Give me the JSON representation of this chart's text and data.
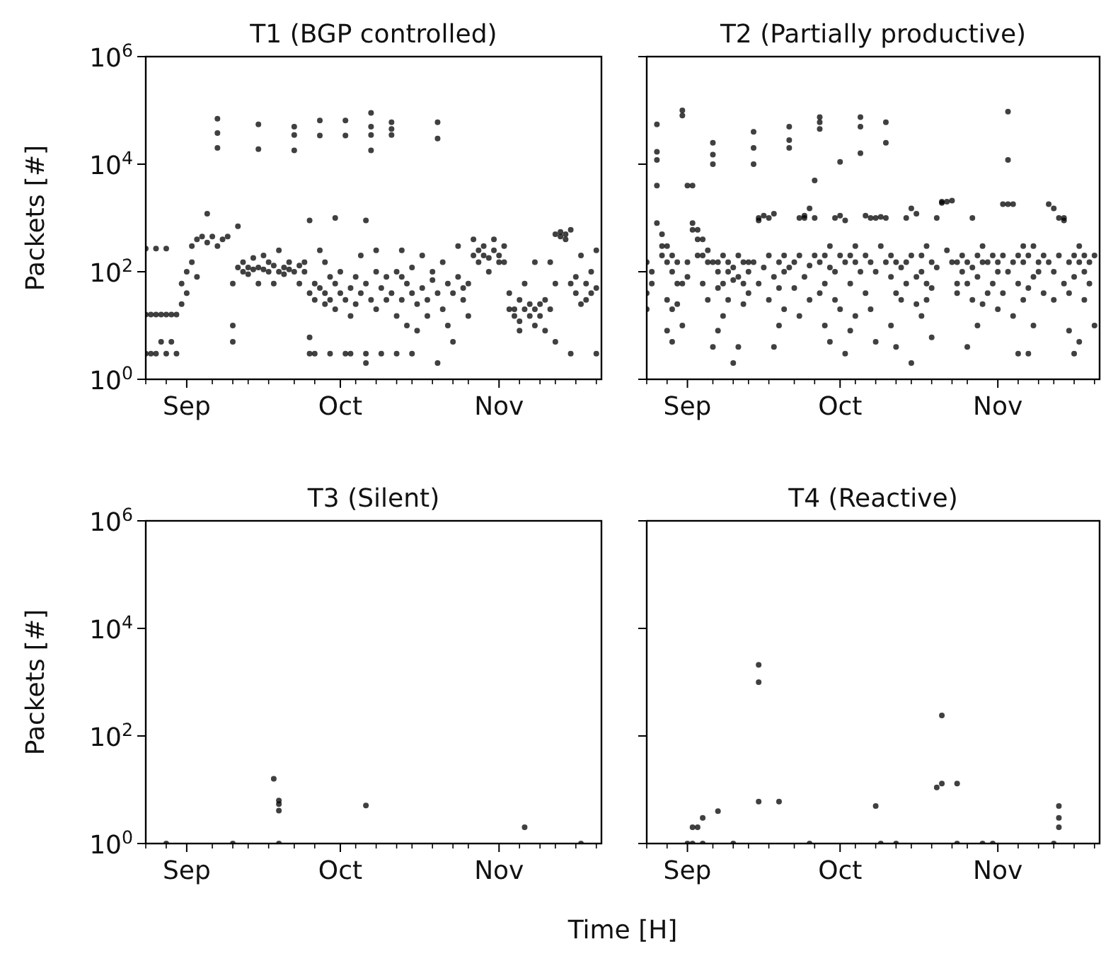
{
  "chart_data": [
    {
      "type": "scatter",
      "title": "T1 (BGP controlled)",
      "ylabel": "Packets [#]",
      "color": "#000000",
      "marker": "circle",
      "log": "y",
      "xlim": [
        "--08-24",
        "--11-21"
      ],
      "ylim": [
        1,
        1000000
      ],
      "xticks": [
        {
          "value": "--09-01",
          "label": "Sep"
        },
        {
          "value": "--10-01",
          "label": "Oct"
        },
        {
          "value": "--11-01",
          "label": "Nov"
        },
        {
          "value": "--08-24",
          "label": null
        },
        {
          "value": "--08-28",
          "label": null
        },
        {
          "value": "--09-06",
          "label": null
        },
        {
          "value": "--09-10",
          "label": null
        },
        {
          "value": "--09-13",
          "label": null
        },
        {
          "value": "--09-17",
          "label": null
        },
        {
          "value": "--09-22",
          "label": null
        },
        {
          "value": "--09-26",
          "label": null
        },
        {
          "value": "--10-04",
          "label": null
        },
        {
          "value": "--10-08",
          "label": null
        },
        {
          "value": "--10-12",
          "label": null
        },
        {
          "value": "--10-15",
          "label": null
        },
        {
          "value": "--10-19",
          "label": null
        },
        {
          "value": "--10-23",
          "label": null
        },
        {
          "value": "--10-26",
          "label": null
        },
        {
          "value": "--11-05",
          "label": null
        },
        {
          "value": "--11-09",
          "label": null
        },
        {
          "value": "--11-12",
          "label": null
        },
        {
          "value": "--11-16",
          "label": null
        },
        {
          "value": "--11-20",
          "label": null
        }
      ],
      "yticks": [
        {
          "value": 1,
          "label": "10$^{0}$"
        },
        {
          "value": 100,
          "label": "10$^{2}$"
        },
        {
          "value": 10000,
          "label": "10$^{4}$"
        },
        {
          "value": 1000000,
          "label": "10$^{6}$"
        }
      ],
      "x": [
        "--08-24",
        "--08-24",
        "--08-24",
        "--08-25",
        "--08-25",
        "--08-26",
        "--08-26",
        "--08-26",
        "--08-27",
        "--08-27",
        "--08-28",
        "--08-28",
        "--08-28",
        "--08-29",
        "--08-29",
        "--08-30",
        "--08-30",
        "--08-31",
        "--08-31",
        "--09-01",
        "--09-01",
        "--09-02",
        "--09-02",
        "--09-03",
        "--09-03",
        "--09-04",
        "--09-05",
        "--09-05",
        "--09-06",
        "--09-07",
        "--09-07",
        "--09-07",
        "--09-07",
        "--09-08",
        "--09-09",
        "--09-10",
        "--09-10",
        "--09-10",
        "--09-11",
        "--09-11",
        "--09-12",
        "--09-12",
        "--09-13",
        "--09-13",
        "--09-14",
        "--09-14",
        "--09-15",
        "--09-15",
        "--09-15",
        "--09-15",
        "--09-16",
        "--09-16",
        "--09-17",
        "--09-17",
        "--09-18",
        "--09-18",
        "--09-19",
        "--09-19",
        "--09-20",
        "--09-20",
        "--09-21",
        "--09-21",
        "--09-22",
        "--09-22",
        "--09-22",
        "--09-22",
        "--09-23",
        "--09-23",
        "--09-24",
        "--09-24",
        "--09-25",
        "--09-25",
        "--09-25",
        "--09-25",
        "--09-26",
        "--09-26",
        "--09-26",
        "--09-27",
        "--09-27",
        "--09-27",
        "--09-27",
        "--09-28",
        "--09-28",
        "--09-28",
        "--09-29",
        "--09-29",
        "--09-29",
        "--09-30",
        "--09-30",
        "--09-30",
        "--10-01",
        "--10-01",
        "--10-02",
        "--10-02",
        "--10-02",
        "--10-02",
        "--10-03",
        "--10-03",
        "--10-03",
        "--10-04",
        "--10-04",
        "--10-05",
        "--10-05",
        "--10-06",
        "--10-06",
        "--10-06",
        "--10-06",
        "--10-07",
        "--10-07",
        "--10-07",
        "--10-07",
        "--10-07",
        "--10-08",
        "--10-08",
        "--10-08",
        "--10-09",
        "--10-09",
        "--10-10",
        "--10-10",
        "--10-11",
        "--10-11",
        "--10-11",
        "--10-11",
        "--10-12",
        "--10-12",
        "--10-12",
        "--10-13",
        "--10-13",
        "--10-13",
        "--10-14",
        "--10-14",
        "--10-15",
        "--10-15",
        "--10-15",
        "--10-16",
        "--10-16",
        "--10-17",
        "--10-17",
        "--10-18",
        "--10-18",
        "--10-19",
        "--10-19",
        "--10-20",
        "--10-20",
        "--10-20",
        "--10-20",
        "--10-21",
        "--10-21",
        "--10-22",
        "--10-22",
        "--10-23",
        "--10-23",
        "--10-24",
        "--10-24",
        "--10-25",
        "--10-25",
        "--10-26",
        "--10-26",
        "--10-27",
        "--10-27",
        "--10-28",
        "--10-28",
        "--10-29",
        "--10-29",
        "--10-30",
        "--10-30",
        "--10-31",
        "--10-31",
        "--11-01",
        "--11-01",
        "--11-02",
        "--11-02",
        "--11-03",
        "--11-03",
        "--11-04",
        "--11-04",
        "--11-05",
        "--11-05",
        "--11-05",
        "--11-06",
        "--11-06",
        "--11-07",
        "--11-07",
        "--11-08",
        "--11-08",
        "--11-08",
        "--11-09",
        "--11-09",
        "--11-10",
        "--11-10",
        "--11-11",
        "--11-11",
        "--11-12",
        "--11-12",
        "--11-12",
        "--11-13",
        "--11-13",
        "--11-14",
        "--11-14",
        "--11-15",
        "--11-15",
        "--11-15",
        "--11-16",
        "--11-16",
        "--11-17",
        "--11-17",
        "--11-18",
        "--11-18",
        "--11-19",
        "--11-19",
        "--11-20",
        "--11-20",
        "--11-20"
      ],
      "values": [
        16,
        3,
        270,
        16,
        3,
        16,
        270,
        3,
        16,
        5,
        16,
        3,
        270,
        16,
        5,
        16,
        3,
        25,
        60,
        40,
        100,
        150,
        300,
        400,
        80,
        450,
        350,
        1200,
        450,
        70000,
        38000,
        20000,
        300,
        400,
        450,
        60,
        10,
        5,
        120,
        700,
        100,
        150,
        120,
        90,
        110,
        180,
        55000,
        19000,
        120,
        60,
        110,
        200,
        100,
        150,
        130,
        60,
        100,
        250,
        120,
        90,
        110,
        150,
        50000,
        35000,
        18000,
        100,
        130,
        60,
        100,
        150,
        900,
        40,
        6,
        3,
        60,
        30,
        3,
        65000,
        34000,
        50,
        250,
        40,
        25,
        150,
        30,
        80,
        3,
        60,
        20,
        1000,
        40,
        100,
        65000,
        34000,
        30,
        3,
        50,
        15,
        3,
        80,
        25,
        40,
        200,
        60,
        900,
        2,
        3,
        90000,
        50000,
        35000,
        18000,
        30,
        100,
        20,
        250,
        50,
        3,
        30,
        80,
        60000,
        45000,
        35000,
        40,
        15,
        100,
        3,
        80,
        30,
        250,
        10,
        60,
        40,
        120,
        3,
        25,
        8,
        50,
        200,
        30,
        15,
        70,
        100,
        60000,
        30000,
        40,
        2,
        20,
        150,
        60,
        10,
        40,
        5,
        80,
        300,
        30,
        50,
        60,
        15,
        200,
        400,
        250,
        150,
        300,
        200,
        180,
        100,
        250,
        400,
        200,
        150,
        150,
        300,
        40,
        20,
        20,
        15,
        12,
        30,
        8,
        20,
        60,
        15,
        25,
        20,
        10,
        150,
        15,
        25,
        30,
        8,
        20,
        150,
        500,
        60,
        5,
        550,
        450,
        500,
        400,
        600,
        60,
        3,
        40,
        80,
        25,
        200,
        60,
        30,
        40,
        100,
        250,
        3,
        50
      ]
    },
    {
      "type": "scatter",
      "title": "T2 (Partially productive)",
      "color": "#000000",
      "marker": "circle",
      "log": "y",
      "tick_labels": "x",
      "xlim": [
        "--08-24",
        "--11-21"
      ],
      "ylim": [
        1,
        1000000
      ],
      "xticks": [
        {
          "value": "--09-01",
          "label": "Sep"
        },
        {
          "value": "--10-01",
          "label": "Oct"
        },
        {
          "value": "--11-01",
          "label": "Nov"
        },
        {
          "value": "--08-24",
          "label": null
        },
        {
          "value": "--08-28",
          "label": null
        },
        {
          "value": "--09-06",
          "label": null
        },
        {
          "value": "--09-10",
          "label": null
        },
        {
          "value": "--09-13",
          "label": null
        },
        {
          "value": "--09-17",
          "label": null
        },
        {
          "value": "--09-22",
          "label": null
        },
        {
          "value": "--09-26",
          "label": null
        },
        {
          "value": "--10-04",
          "label": null
        },
        {
          "value": "--10-08",
          "label": null
        },
        {
          "value": "--10-12",
          "label": null
        },
        {
          "value": "--10-15",
          "label": null
        },
        {
          "value": "--10-19",
          "label": null
        },
        {
          "value": "--10-23",
          "label": null
        },
        {
          "value": "--10-26",
          "label": null
        },
        {
          "value": "--11-05",
          "label": null
        },
        {
          "value": "--11-09",
          "label": null
        },
        {
          "value": "--11-12",
          "label": null
        },
        {
          "value": "--11-16",
          "label": null
        },
        {
          "value": "--11-20",
          "label": null
        }
      ],
      "yticks": [
        {
          "value": 1,
          "label": null
        },
        {
          "value": 100,
          "label": null
        },
        {
          "value": 10000,
          "label": null
        },
        {
          "value": 1000000,
          "label": null
        }
      ],
      "x": [
        "--08-24",
        "--08-24",
        "--08-24",
        "--08-25",
        "--08-25",
        "--08-26",
        "--08-26",
        "--08-26",
        "--08-26",
        "--08-26",
        "--08-27",
        "--08-27",
        "--08-27",
        "--08-28",
        "--08-28",
        "--08-28",
        "--08-28",
        "--08-29",
        "--08-29",
        "--08-29",
        "--08-29",
        "--08-30",
        "--08-30",
        "--08-30",
        "--08-31",
        "--08-31",
        "--08-31",
        "--08-31",
        "--09-01",
        "--09-01",
        "--09-01",
        "--09-02",
        "--09-02",
        "--09-02",
        "--09-03",
        "--09-03",
        "--09-03",
        "--09-04",
        "--09-04",
        "--09-04",
        "--09-05",
        "--09-05",
        "--09-05",
        "--09-06",
        "--09-06",
        "--09-06",
        "--09-06",
        "--09-06",
        "--09-07",
        "--09-07",
        "--09-07",
        "--09-07",
        "--09-08",
        "--09-08",
        "--09-08",
        "--09-09",
        "--09-09",
        "--09-09",
        "--09-10",
        "--09-10",
        "--09-10",
        "--09-11",
        "--09-11",
        "--09-11",
        "--09-12",
        "--09-12",
        "--09-12",
        "--09-13",
        "--09-13",
        "--09-13",
        "--09-14",
        "--09-14",
        "--09-14",
        "--09-14",
        "--09-15",
        "--09-15",
        "--09-15",
        "--09-16",
        "--09-16",
        "--09-17",
        "--09-17",
        "--09-17",
        "--09-18",
        "--09-18",
        "--09-18",
        "--09-19",
        "--09-19",
        "--09-19",
        "--09-20",
        "--09-20",
        "--09-20",
        "--09-21",
        "--09-21",
        "--09-21",
        "--09-21",
        "--09-22",
        "--09-22",
        "--09-23",
        "--09-23",
        "--09-23",
        "--09-24",
        "--09-24",
        "--09-24",
        "--09-25",
        "--09-25",
        "--09-25",
        "--09-26",
        "--09-26",
        "--09-26",
        "--09-27",
        "--09-27",
        "--09-27",
        "--09-27",
        "--09-27",
        "--09-28",
        "--09-28",
        "--09-28",
        "--09-29",
        "--09-29",
        "--09-29",
        "--09-30",
        "--09-30",
        "--09-30",
        "--10-01",
        "--10-01",
        "--10-01",
        "--10-01",
        "--10-02",
        "--10-02",
        "--10-02",
        "--10-03",
        "--10-03",
        "--10-03",
        "--10-04",
        "--10-04",
        "--10-04",
        "--10-05",
        "--10-05",
        "--10-05",
        "--10-05",
        "--10-06",
        "--10-06",
        "--10-06",
        "--10-07",
        "--10-07",
        "--10-07",
        "--10-08",
        "--10-08",
        "--10-08",
        "--10-09",
        "--10-09",
        "--10-10",
        "--10-10",
        "--10-10",
        "--10-10",
        "--10-11",
        "--10-11",
        "--10-11",
        "--10-12",
        "--10-12",
        "--10-12",
        "--10-13",
        "--10-13",
        "--10-14",
        "--10-14",
        "--10-14",
        "--10-15",
        "--10-15",
        "--10-15",
        "--10-16",
        "--10-16",
        "--10-16",
        "--10-17",
        "--10-17",
        "--10-17",
        "--10-18",
        "--10-18",
        "--10-18",
        "--10-19",
        "--10-19",
        "--10-19",
        "--10-20",
        "--10-20",
        "--10-21",
        "--10-21",
        "--10-22",
        "--10-22",
        "--10-23",
        "--10-23",
        "--10-24",
        "--10-24",
        "--10-24",
        "--10-25",
        "--10-25",
        "--10-26",
        "--10-26",
        "--10-26",
        "--10-27",
        "--10-27",
        "--10-27",
        "--10-28",
        "--10-28",
        "--10-28",
        "--10-29",
        "--10-29",
        "--10-29",
        "--10-30",
        "--10-30",
        "--10-31",
        "--10-31",
        "--11-01",
        "--11-01",
        "--11-01",
        "--11-02",
        "--11-02",
        "--11-02",
        "--11-03",
        "--11-03",
        "--11-03",
        "--11-03",
        "--11-04",
        "--11-04",
        "--11-04",
        "--11-05",
        "--11-05",
        "--11-05",
        "--11-06",
        "--11-06",
        "--11-06",
        "--11-07",
        "--11-07",
        "--11-07",
        "--11-08",
        "--11-08",
        "--11-08",
        "--11-09",
        "--11-09",
        "--11-10",
        "--11-10",
        "--11-11",
        "--11-11",
        "--11-12",
        "--11-12",
        "--11-12",
        "--11-13",
        "--11-13",
        "--11-14",
        "--11-14",
        "--11-14",
        "--11-15",
        "--11-15",
        "--11-15",
        "--11-16",
        "--11-16",
        "--11-16",
        "--11-17",
        "--11-17",
        "--11-17",
        "--11-18",
        "--11-18",
        "--11-18",
        "--11-19",
        "--11-19",
        "--11-20",
        "--11-20"
      ],
      "values": [
        150,
        40,
        20,
        100,
        60,
        55000,
        17000,
        12000,
        4000,
        800,
        500,
        300,
        200,
        300,
        150,
        30,
        8,
        200,
        100,
        20,
        5,
        150,
        60,
        25,
        100000,
        80000,
        60,
        10,
        4000,
        150,
        80,
        4000,
        600,
        800,
        600,
        400,
        200,
        400,
        200,
        60,
        250,
        150,
        30,
        25000,
        15000,
        10000,
        150,
        4,
        150,
        100,
        50,
        8,
        200,
        60,
        15,
        150,
        100,
        30,
        120,
        70,
        2,
        200,
        80,
        4,
        150,
        60,
        25,
        100,
        150,
        40,
        40000,
        20000,
        10000,
        150,
        1000,
        900,
        60,
        1100,
        120,
        1000,
        200,
        30,
        1200,
        80,
        4,
        150,
        50,
        10,
        200,
        100,
        20,
        50000,
        28000,
        20000,
        120,
        150,
        50,
        1000,
        200,
        15,
        1100,
        1000,
        80,
        1500,
        130,
        30,
        1000,
        200,
        5000,
        75000,
        60000,
        45000,
        150,
        40,
        200,
        60,
        10,
        120,
        300,
        5,
        1000,
        100,
        30,
        1100,
        11000,
        200,
        20,
        900,
        150,
        3,
        200,
        60,
        8,
        150,
        300,
        15,
        75000,
        50000,
        16000,
        100,
        1100,
        200,
        40,
        1000,
        150,
        20,
        1000,
        100,
        5,
        1050,
        300,
        60000,
        25000,
        1000,
        150,
        200,
        80,
        10,
        150,
        40,
        4,
        120,
        30,
        1000,
        150,
        60,
        1500,
        200,
        2,
        1200,
        80,
        25,
        200,
        100,
        15,
        300,
        60,
        30,
        150,
        50,
        6,
        1000,
        120,
        2000,
        1900,
        2000,
        250,
        2100,
        150,
        150,
        60,
        40,
        200,
        100,
        150,
        60,
        4,
        1000,
        120,
        30,
        200,
        80,
        10,
        300,
        150,
        25,
        150,
        40,
        200,
        60,
        150,
        100,
        20,
        1800,
        200,
        40,
        95000,
        12000,
        1800,
        100,
        1800,
        150,
        15,
        200,
        60,
        3,
        150,
        300,
        30,
        200,
        50,
        3,
        300,
        80,
        10,
        150,
        100,
        200,
        40,
        1800,
        150,
        1500,
        100,
        30,
        1000,
        200,
        1000,
        900,
        60,
        150,
        40,
        8,
        200,
        80,
        3,
        300,
        150,
        5,
        200,
        100,
        30,
        150,
        60,
        200,
        10
      ]
    },
    {
      "type": "scatter",
      "title": "T3 (Silent)",
      "ylabel": "Packets [#]",
      "xlabel": "Time [H]",
      "color": "#000000",
      "marker": "circle",
      "log": "y",
      "xlim": [
        "--08-24",
        "--11-21"
      ],
      "ylim": [
        1,
        1000000
      ],
      "xticks": [
        {
          "value": "--09-01",
          "label": "Sep"
        },
        {
          "value": "--10-01",
          "label": "Oct"
        },
        {
          "value": "--11-01",
          "label": "Nov"
        },
        {
          "value": "--08-24",
          "label": null
        },
        {
          "value": "--08-28",
          "label": null
        },
        {
          "value": "--09-06",
          "label": null
        },
        {
          "value": "--09-10",
          "label": null
        },
        {
          "value": "--09-13",
          "label": null
        },
        {
          "value": "--09-17",
          "label": null
        },
        {
          "value": "--09-22",
          "label": null
        },
        {
          "value": "--09-26",
          "label": null
        },
        {
          "value": "--10-04",
          "label": null
        },
        {
          "value": "--10-08",
          "label": null
        },
        {
          "value": "--10-12",
          "label": null
        },
        {
          "value": "--10-15",
          "label": null
        },
        {
          "value": "--10-19",
          "label": null
        },
        {
          "value": "--10-23",
          "label": null
        },
        {
          "value": "--10-26",
          "label": null
        },
        {
          "value": "--11-05",
          "label": null
        },
        {
          "value": "--11-09",
          "label": null
        },
        {
          "value": "--11-12",
          "label": null
        },
        {
          "value": "--11-16",
          "label": null
        },
        {
          "value": "--11-20",
          "label": null
        }
      ],
      "yticks": [
        {
          "value": 1,
          "label": "10$^{0}$"
        },
        {
          "value": 100,
          "label": "10$^{2}$"
        },
        {
          "value": 10000,
          "label": "10$^{4}$"
        },
        {
          "value": 1000000,
          "label": "10$^{6}$"
        }
      ],
      "x": [
        "--08-28",
        "--09-10",
        "--09-18",
        "--09-19",
        "--09-19",
        "--09-19",
        "--09-19",
        "--10-06",
        "--11-06",
        "--11-17"
      ],
      "values": [
        1,
        1,
        16,
        6.3,
        5.4,
        4.1,
        1,
        5.1,
        2,
        1
      ]
    },
    {
      "type": "scatter",
      "title": "T4 (Reactive)",
      "color": "#000000",
      "marker": "circle",
      "log": "y",
      "tick_labels": "x",
      "xlim": [
        "--08-24",
        "--11-21"
      ],
      "ylim": [
        1,
        1000000
      ],
      "xticks": [
        {
          "value": "--09-01",
          "label": "Sep"
        },
        {
          "value": "--10-01",
          "label": "Oct"
        },
        {
          "value": "--11-01",
          "label": "Nov"
        },
        {
          "value": "--08-24",
          "label": null
        },
        {
          "value": "--08-28",
          "label": null
        },
        {
          "value": "--09-06",
          "label": null
        },
        {
          "value": "--09-10",
          "label": null
        },
        {
          "value": "--09-13",
          "label": null
        },
        {
          "value": "--09-17",
          "label": null
        },
        {
          "value": "--09-22",
          "label": null
        },
        {
          "value": "--09-26",
          "label": null
        },
        {
          "value": "--10-04",
          "label": null
        },
        {
          "value": "--10-08",
          "label": null
        },
        {
          "value": "--10-12",
          "label": null
        },
        {
          "value": "--10-15",
          "label": null
        },
        {
          "value": "--10-19",
          "label": null
        },
        {
          "value": "--10-23",
          "label": null
        },
        {
          "value": "--10-26",
          "label": null
        },
        {
          "value": "--11-05",
          "label": null
        },
        {
          "value": "--11-09",
          "label": null
        },
        {
          "value": "--11-12",
          "label": null
        },
        {
          "value": "--11-16",
          "label": null
        },
        {
          "value": "--11-20",
          "label": null
        }
      ],
      "yticks": [
        {
          "value": 1,
          "label": null
        },
        {
          "value": 100,
          "label": null
        },
        {
          "value": 10000,
          "label": null
        },
        {
          "value": 1000000,
          "label": null
        }
      ],
      "x": [
        "--09-01",
        "--09-02",
        "--09-02",
        "--09-03",
        "--09-04",
        "--09-04",
        "--09-07",
        "--09-10",
        "--09-15",
        "--09-15",
        "--09-15",
        "--09-19",
        "--09-25",
        "--10-08",
        "--10-09",
        "--10-12",
        "--10-20",
        "--10-21",
        "--10-21",
        "--10-24",
        "--10-24",
        "--10-29",
        "--10-31",
        "--11-12",
        "--11-13",
        "--11-13",
        "--11-13"
      ],
      "values": [
        1,
        1,
        2,
        2,
        3,
        1,
        4,
        1,
        2100,
        1000,
        6,
        6,
        1,
        5,
        1,
        1,
        11,
        240,
        13,
        13,
        1,
        1,
        1,
        1,
        5,
        3,
        2
      ]
    }
  ]
}
